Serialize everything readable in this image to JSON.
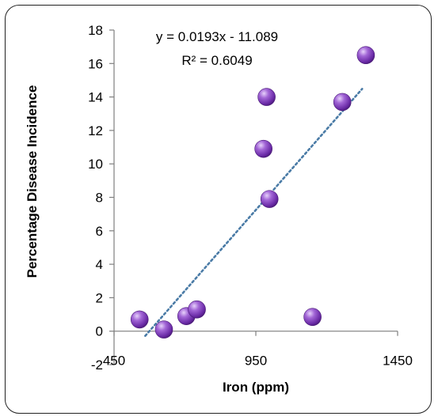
{
  "chart_data": {
    "type": "scatter",
    "xlabel": "Iron (ppm)",
    "ylabel": "Percentage Disease Incidence",
    "xlim": [
      450,
      1450
    ],
    "ylim": [
      -2,
      18
    ],
    "x_ticks": [
      450,
      950,
      1450
    ],
    "y_ticks": [
      -2,
      0,
      2,
      4,
      6,
      8,
      10,
      12,
      14,
      16,
      18
    ],
    "points": [
      {
        "x": 540,
        "y": 0.7
      },
      {
        "x": 626,
        "y": 0.1
      },
      {
        "x": 705,
        "y": 0.9
      },
      {
        "x": 742,
        "y": 1.3
      },
      {
        "x": 977,
        "y": 10.9
      },
      {
        "x": 988,
        "y": 14.0
      },
      {
        "x": 998,
        "y": 7.9
      },
      {
        "x": 1150,
        "y": 0.85
      },
      {
        "x": 1255,
        "y": 13.7
      },
      {
        "x": 1338,
        "y": 16.5
      }
    ],
    "trendline": {
      "slope": 0.0193,
      "intercept": -11.089,
      "x_range": [
        560,
        1325
      ]
    },
    "equation_text": "y = 0.0193x - 11.089",
    "r2_text": "R² = 0.6049",
    "marker_color": "#7030A0",
    "trendline_color": "#4A7BA6",
    "grid": false
  }
}
